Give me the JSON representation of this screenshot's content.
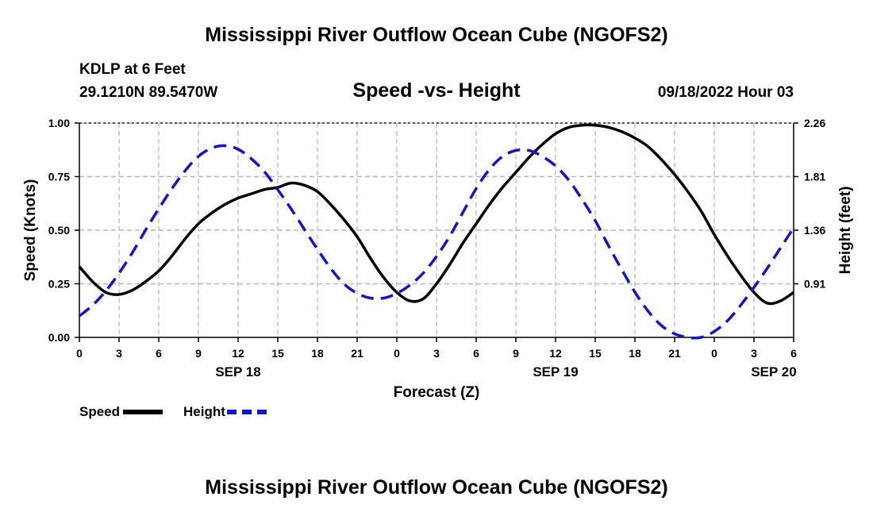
{
  "main_title": "Mississippi River Outflow Ocean Cube (NGOFS2)",
  "footer_title": "Mississippi River Outflow Ocean Cube (NGOFS2)",
  "station": "KDLP at 6 Feet",
  "coordinates": "29.1210N  89.5470W",
  "datetime": "09/18/2022 Hour 03",
  "legend": {
    "speed_label": "Speed",
    "height_label": "Height"
  },
  "colors": {
    "speed": "#000000",
    "height": "#1414c8",
    "grid": "#b4b4b4"
  },
  "chart_data": {
    "type": "line",
    "title": "Speed -vs- Height",
    "xlabel": "Forecast (Z)",
    "ylabel": "Speed (Knots)",
    "y2label": "Height (feet)",
    "x_unit": "forecast hour from 09/18 00Z",
    "xlim": [
      0,
      54
    ],
    "ylim": [
      0,
      1.0
    ],
    "y2lim": [
      0.46,
      2.26
    ],
    "x_ticks": [
      0,
      3,
      6,
      9,
      12,
      15,
      18,
      21,
      24,
      27,
      30,
      33,
      36,
      39,
      42,
      45,
      48,
      51,
      54
    ],
    "x_tick_labels": [
      "0",
      "3",
      "6",
      "9",
      "12",
      "15",
      "18",
      "21",
      "0",
      "3",
      "6",
      "9",
      "12",
      "15",
      "18",
      "21",
      "0",
      "3",
      "6"
    ],
    "date_labels": [
      {
        "x": 12,
        "label": "SEP 18"
      },
      {
        "x": 36,
        "label": "SEP 19"
      },
      {
        "x": 52.5,
        "label": "SEP 20"
      }
    ],
    "y_ticks": [
      0,
      0.25,
      0.5,
      0.75,
      1.0
    ],
    "y_tick_labels": [
      "0.00",
      "0.25",
      "0.50",
      "0.75",
      "1.00"
    ],
    "y2_ticks": [
      0.91,
      1.36,
      1.81,
      2.26
    ],
    "y2_tick_labels": [
      "0.91",
      "1.36",
      "1.81",
      "2.26"
    ],
    "grid": true,
    "series": [
      {
        "name": "Speed",
        "axis": "left",
        "style": "solid",
        "x": [
          0,
          1,
          2,
          3,
          4,
          5,
          6,
          7,
          8,
          9,
          10,
          11,
          12,
          13,
          14,
          15,
          16,
          17,
          18,
          19,
          20,
          21,
          22,
          23,
          24,
          25,
          26,
          27,
          28,
          29,
          30,
          31,
          32,
          33,
          34,
          35,
          36,
          37,
          38,
          39,
          40,
          41,
          42,
          43,
          44,
          45,
          46,
          47,
          48,
          49,
          50,
          51,
          52,
          53,
          54
        ],
        "values": [
          0.33,
          0.26,
          0.21,
          0.2,
          0.22,
          0.26,
          0.31,
          0.38,
          0.46,
          0.53,
          0.58,
          0.62,
          0.65,
          0.67,
          0.69,
          0.7,
          0.72,
          0.71,
          0.68,
          0.62,
          0.55,
          0.47,
          0.37,
          0.28,
          0.21,
          0.17,
          0.18,
          0.25,
          0.34,
          0.44,
          0.53,
          0.62,
          0.7,
          0.77,
          0.84,
          0.9,
          0.95,
          0.98,
          0.99,
          0.99,
          0.98,
          0.96,
          0.93,
          0.89,
          0.83,
          0.76,
          0.68,
          0.59,
          0.48,
          0.38,
          0.29,
          0.21,
          0.16,
          0.17,
          0.21
        ]
      },
      {
        "name": "Height",
        "axis": "right",
        "style": "dashed",
        "x": [
          0,
          1,
          2,
          3,
          4,
          5,
          6,
          7,
          8,
          9,
          10,
          11,
          12,
          13,
          14,
          15,
          16,
          17,
          18,
          19,
          20,
          21,
          22,
          23,
          24,
          25,
          26,
          27,
          28,
          29,
          30,
          31,
          32,
          33,
          34,
          35,
          36,
          37,
          38,
          39,
          40,
          41,
          42,
          43,
          44,
          45,
          46,
          47,
          48,
          49,
          50,
          51,
          52,
          53,
          54
        ],
        "values": [
          0.64,
          0.73,
          0.85,
          1.0,
          1.17,
          1.36,
          1.54,
          1.71,
          1.86,
          1.98,
          2.05,
          2.07,
          2.04,
          1.96,
          1.85,
          1.7,
          1.54,
          1.37,
          1.2,
          1.04,
          0.91,
          0.83,
          0.79,
          0.79,
          0.83,
          0.9,
          1.0,
          1.14,
          1.31,
          1.51,
          1.71,
          1.87,
          1.98,
          2.03,
          2.03,
          1.98,
          1.9,
          1.78,
          1.62,
          1.44,
          1.23,
          1.03,
          0.84,
          0.68,
          0.56,
          0.49,
          0.46,
          0.46,
          0.51,
          0.6,
          0.73,
          0.88,
          1.04,
          1.21,
          1.38
        ]
      }
    ]
  }
}
